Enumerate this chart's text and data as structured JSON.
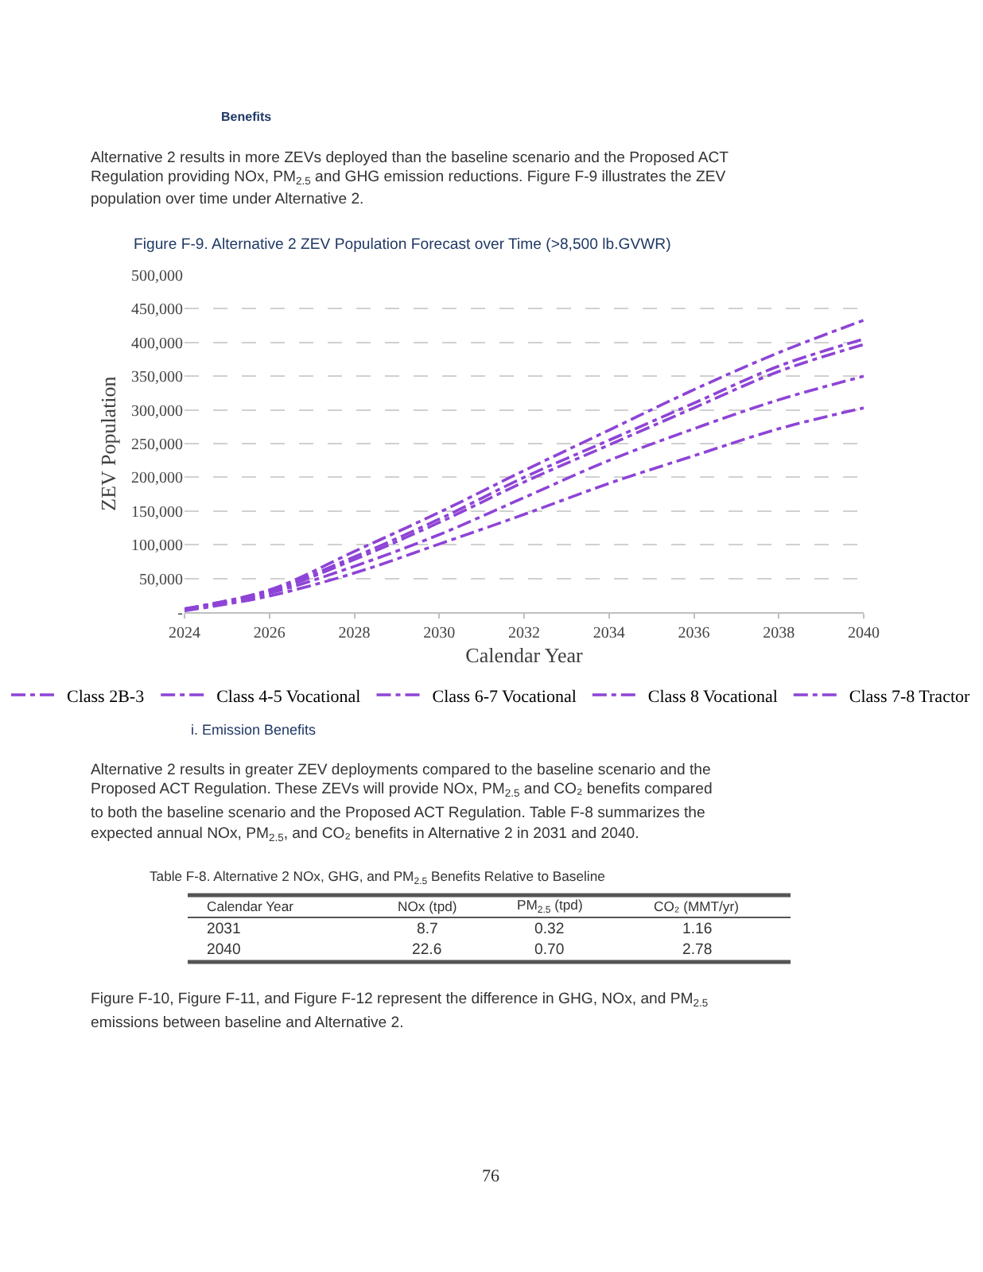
{
  "chart_data": {
    "type": "line",
    "title": "Figure F-9. Alternative 2 ZEV Population Forecast over Time (>8,500 lb.GVWR)",
    "xlabel": "Calendar Year",
    "ylabel": "ZEV Population",
    "x": [
      2024,
      2026,
      2028,
      2030,
      2032,
      2034,
      2036,
      2038,
      2040
    ],
    "series": [
      {
        "name": "Class 2B-3",
        "color": "#8e44d6",
        "values": [
          5000,
          33000,
          90000,
          148000,
          210000,
          270000,
          330000,
          385000,
          433000
        ]
      },
      {
        "name": "Class 4-5 Vocational",
        "color": "#8e44d6",
        "values": [
          5000,
          32000,
          82000,
          138000,
          200000,
          255000,
          310000,
          365000,
          405000
        ]
      },
      {
        "name": "Class 6-7 Vocational",
        "color": "#8e44d6",
        "values": [
          4000,
          30000,
          78000,
          133000,
          193000,
          248000,
          303000,
          357000,
          397000
        ]
      },
      {
        "name": "Class 8 Vocational",
        "color": "#8e44d6",
        "values": [
          3000,
          28000,
          68000,
          115000,
          170000,
          225000,
          272000,
          315000,
          350000
        ]
      },
      {
        "name": "Class 7-8 Tractor",
        "color": "#8e44d6",
        "values": [
          2000,
          24000,
          58000,
          101000,
          145000,
          191000,
          232000,
          272000,
          303000
        ]
      }
    ],
    "xlim": [
      2024,
      2040
    ],
    "xticks": [
      2024,
      2026,
      2028,
      2030,
      2032,
      2034,
      2036,
      2038,
      2040
    ],
    "ylim": [
      0,
      500000
    ],
    "yticks": [
      {
        "value": 0,
        "label": "-"
      },
      {
        "value": 50000,
        "label": "50,000"
      },
      {
        "value": 100000,
        "label": "100,000"
      },
      {
        "value": 150000,
        "label": "150,000"
      },
      {
        "value": 200000,
        "label": "200,000"
      },
      {
        "value": 250000,
        "label": "250,000"
      },
      {
        "value": 300000,
        "label": "300,000"
      },
      {
        "value": 350000,
        "label": "350,000"
      },
      {
        "value": 400000,
        "label": "400,000"
      },
      {
        "value": 450000,
        "label": "450,000"
      },
      {
        "value": 500000,
        "label": "500,000"
      }
    ],
    "grid": "y",
    "legend": "bottom",
    "marker": "none",
    "line_style": "dashed",
    "annotations": [
      "Benefits",
      "Alternative 2 results in more ZEVs deployed than the baseline scenario and the Proposed ACT",
      "Regulation providing NOx, PM$_{2.5}$ and GHG emission reductions. Figure F-9 illustrates the ZEV",
      "population over time under Alternative 2.",
      "i. Emission Benefits",
      "Alternative 2 results in greater ZEV deployments compared to the baseline scenario and the",
      "Proposed ACT Regulation. These ZEVs will provide NOx, PM$_{2.5}$ and CO₂ benefits compared",
      "to both the baseline scenario and the Proposed ACT Regulation. Table F-8 summarizes the",
      "expected annual NOx, PM$_{2.5}$, and CO₂ benefits in Alternative 2 in 2031 and 2040.",
      "Table F-8. Alternative 2 NOx, GHG, and PM$_{2.5}$ Benefits Relative to Baseline",
      "Calendar Year",
      "NOx (tpd)",
      "PM$_{2.5}$ (tpd)",
      "CO₂ (MMT/yr)",
      "2031",
      "8.7",
      "0.32",
      "1.16",
      "2040",
      "22.6",
      "0.70",
      "2.78",
      "Figure F-10, Figure F-11, and Figure F-12 represent the difference in GHG, NOx, and PM$_{2.5}$",
      "emissions between baseline and Alternative 2.",
      "76"
    ]
  }
}
